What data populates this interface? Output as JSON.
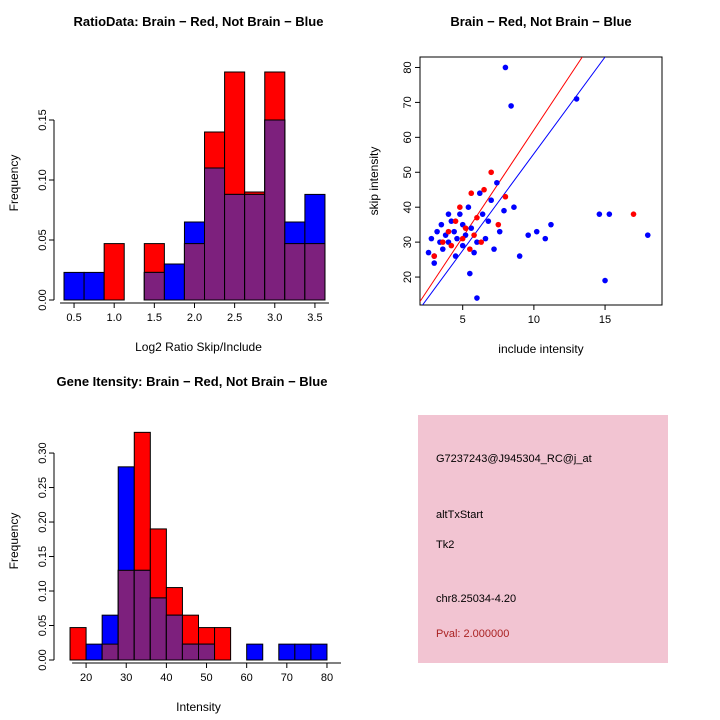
{
  "chart_data": [
    {
      "type": "bar",
      "subtype": "overlaid-histogram",
      "title": "RatioData: Brain − Red, Not Brain − Blue",
      "xlabel": "Log2 Ratio Skip/Include",
      "ylabel": "Frequency",
      "xlim": [
        0.35,
        3.75
      ],
      "ylim": [
        0,
        0.195
      ],
      "xticks": [
        0.5,
        1.0,
        1.5,
        2.0,
        2.5,
        3.0,
        3.5
      ],
      "xtick_labels": [
        "0.5",
        "1.0",
        "1.5",
        "2.0",
        "2.5",
        "3.0",
        "3.5"
      ],
      "yticks": [
        0,
        0.05,
        0.1,
        0.15
      ],
      "ytick_labels": [
        "0.00",
        "0.05",
        "0.10",
        "0.15"
      ],
      "bin_width": 0.25,
      "bin_centers": [
        0.5,
        0.75,
        1.0,
        1.25,
        1.5,
        1.75,
        2.0,
        2.25,
        2.5,
        2.75,
        3.0,
        3.25,
        3.5
      ],
      "series": [
        {
          "name": "Brain",
          "color": "#FF0000",
          "values": [
            0,
            0,
            0.047,
            0,
            0.047,
            0,
            0.047,
            0.14,
            0.19,
            0.09,
            0.19,
            0.047,
            0.047
          ]
        },
        {
          "name": "Not Brain",
          "color": "#0000FF",
          "values": [
            0.023,
            0.023,
            0,
            0,
            0.023,
            0.03,
            0.065,
            0.11,
            0.088,
            0.088,
            0.15,
            0.065,
            0.088
          ]
        }
      ],
      "overlap_color": "#7D207D",
      "grid": false,
      "legend": "none"
    },
    {
      "type": "scatter",
      "title": "Brain − Red, Not Brain − Blue",
      "xlabel": "include intensity",
      "ylabel": "skip intensity",
      "xlim": [
        2,
        19
      ],
      "ylim": [
        12,
        83
      ],
      "xticks": [
        5,
        10,
        15
      ],
      "xtick_labels": [
        "5",
        "10",
        "15"
      ],
      "yticks": [
        20,
        30,
        40,
        50,
        60,
        70,
        80
      ],
      "ytick_labels": [
        "20",
        "30",
        "40",
        "50",
        "60",
        "70",
        "80"
      ],
      "series": [
        {
          "name": "Not Brain",
          "color": "#0000FF",
          "points": [
            [
              2.6,
              27
            ],
            [
              2.8,
              31
            ],
            [
              3.0,
              26
            ],
            [
              3.0,
              24
            ],
            [
              3.2,
              33
            ],
            [
              3.4,
              30
            ],
            [
              3.5,
              35
            ],
            [
              3.6,
              28
            ],
            [
              3.8,
              32
            ],
            [
              4.0,
              38
            ],
            [
              4.0,
              30
            ],
            [
              4.2,
              36
            ],
            [
              4.4,
              33
            ],
            [
              4.5,
              26
            ],
            [
              4.6,
              31
            ],
            [
              4.8,
              38
            ],
            [
              5.0,
              29
            ],
            [
              5.0,
              35
            ],
            [
              5.2,
              32
            ],
            [
              5.4,
              40
            ],
            [
              5.5,
              21
            ],
            [
              5.6,
              34
            ],
            [
              5.8,
              27
            ],
            [
              6.0,
              30
            ],
            [
              6.0,
              14
            ],
            [
              6.2,
              44
            ],
            [
              6.4,
              38
            ],
            [
              6.6,
              31
            ],
            [
              6.8,
              36
            ],
            [
              7.0,
              42
            ],
            [
              7.2,
              28
            ],
            [
              7.4,
              47
            ],
            [
              7.6,
              33
            ],
            [
              7.9,
              39
            ],
            [
              8.0,
              80
            ],
            [
              8.4,
              69
            ],
            [
              8.6,
              40
            ],
            [
              9.0,
              26
            ],
            [
              9.6,
              32
            ],
            [
              10.2,
              33
            ],
            [
              10.8,
              31
            ],
            [
              11.2,
              35
            ],
            [
              13.0,
              71
            ],
            [
              14.6,
              38
            ],
            [
              15.0,
              19
            ],
            [
              15.3,
              38
            ],
            [
              18.0,
              32
            ]
          ]
        },
        {
          "name": "Brain",
          "color": "#FF0000",
          "points": [
            [
              3.0,
              26
            ],
            [
              3.6,
              30
            ],
            [
              4.0,
              33
            ],
            [
              4.2,
              29
            ],
            [
              4.5,
              36
            ],
            [
              4.8,
              40
            ],
            [
              5.0,
              31
            ],
            [
              5.2,
              34
            ],
            [
              5.5,
              28
            ],
            [
              5.6,
              44
            ],
            [
              5.8,
              32
            ],
            [
              6.0,
              37
            ],
            [
              6.3,
              30
            ],
            [
              6.5,
              45
            ],
            [
              7.0,
              50
            ],
            [
              7.5,
              35
            ],
            [
              8.0,
              43
            ],
            [
              17.0,
              38
            ]
          ]
        }
      ],
      "lines": [
        {
          "name": "brain-fit-line",
          "color": "#FF0000",
          "x1": 2.0,
          "y1": 13,
          "x2": 13.4,
          "y2": 83
        },
        {
          "name": "notbrain-fit-line",
          "color": "#0000FF",
          "x1": 2.0,
          "y1": 11,
          "x2": 15.0,
          "y2": 83
        }
      ],
      "grid": false,
      "legend": "none"
    },
    {
      "type": "bar",
      "subtype": "overlaid-histogram",
      "title": "Gene Itensity: Brain − Red, Not Brain − Blue",
      "xlabel": "Intensity",
      "ylabel": "Frequency",
      "xlim": [
        14,
        82
      ],
      "ylim": [
        0,
        0.345
      ],
      "xticks": [
        20,
        30,
        40,
        50,
        60,
        70,
        80
      ],
      "xtick_labels": [
        "20",
        "30",
        "40",
        "50",
        "60",
        "70",
        "80"
      ],
      "yticks": [
        0,
        0.05,
        0.1,
        0.15,
        0.2,
        0.25,
        0.3
      ],
      "ytick_labels": [
        "0.00",
        "0.05",
        "0.10",
        "0.15",
        "0.20",
        "0.25",
        "0.30"
      ],
      "bin_width": 4,
      "bin_centers": [
        18,
        22,
        26,
        30,
        34,
        38,
        42,
        46,
        50,
        54,
        58,
        62,
        66,
        70,
        74,
        78
      ],
      "series": [
        {
          "name": "Brain",
          "color": "#FF0000",
          "values": [
            0.047,
            0,
            0.023,
            0.13,
            0.33,
            0.19,
            0.105,
            0.065,
            0.047,
            0.047,
            0,
            0,
            0,
            0,
            0,
            0
          ]
        },
        {
          "name": "Not Brain",
          "color": "#0000FF",
          "values": [
            0,
            0.023,
            0.065,
            0.28,
            0.13,
            0.09,
            0.065,
            0.023,
            0.023,
            0,
            0,
            0.023,
            0,
            0.023,
            0.023,
            0.023
          ]
        }
      ],
      "overlap_color": "#7D207D",
      "grid": false,
      "legend": "none"
    }
  ],
  "info": {
    "box_color": "#F2C4D2",
    "probe_id": "G7237243@J945304_RC@j_at",
    "event_type": "altTxStart",
    "gene": "Tk2",
    "location": "chr8.25034-4.20",
    "pval": "Pval: 2.000000",
    "pval_color": "#AA2222"
  }
}
